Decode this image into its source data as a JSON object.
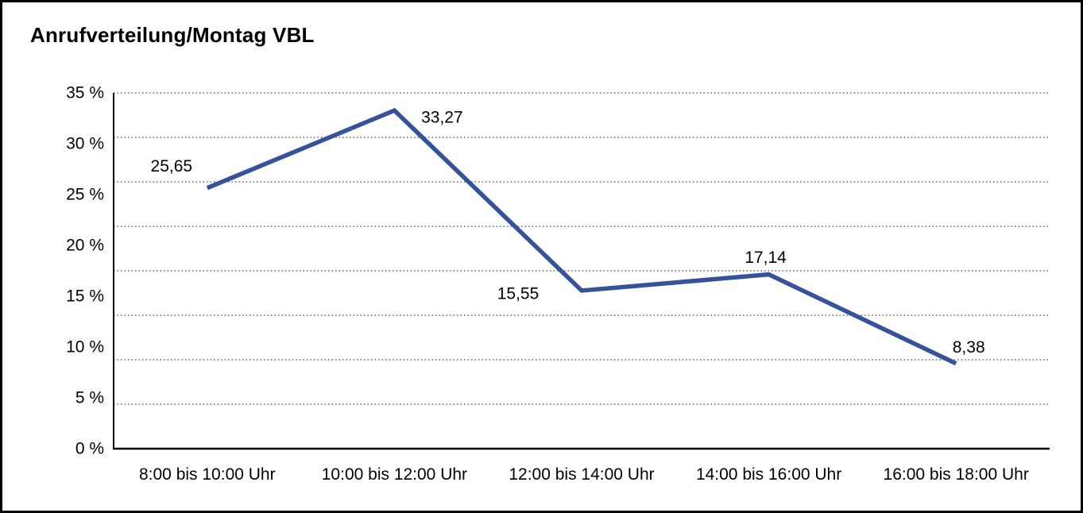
{
  "window": {
    "background": "#ffffff",
    "border_color": "#000000"
  },
  "chart_data": {
    "type": "line",
    "title": "Anrufverteilung/Montag VBL",
    "categories": [
      "8:00 bis 10:00 Uhr",
      "10:00 bis 12:00 Uhr",
      "12:00 bis 14:00 Uhr",
      "14:00 bis 16:00 Uhr",
      "16:00 bis 18:00 Uhr"
    ],
    "values": [
      25.65,
      33.27,
      15.55,
      17.14,
      8.38
    ],
    "point_labels": [
      "25,65",
      "33,27",
      "15,55",
      "17,14",
      "8,38"
    ],
    "y_tick_labels": [
      "35 %",
      "30 %",
      "25 %",
      "20 %",
      "15 %",
      "10 %",
      "5 %",
      "0 %"
    ],
    "y_tick_values": [
      35,
      30,
      25,
      20,
      15,
      10,
      5,
      0
    ],
    "ylim": [
      0,
      35
    ],
    "xlabel": "",
    "ylabel": "",
    "legend": "none",
    "grid": "horizontal-dotted",
    "line_color": "#35539B",
    "grid_color": "#4a4a4a",
    "axis_color": "#000000",
    "text_color": "#000000"
  }
}
